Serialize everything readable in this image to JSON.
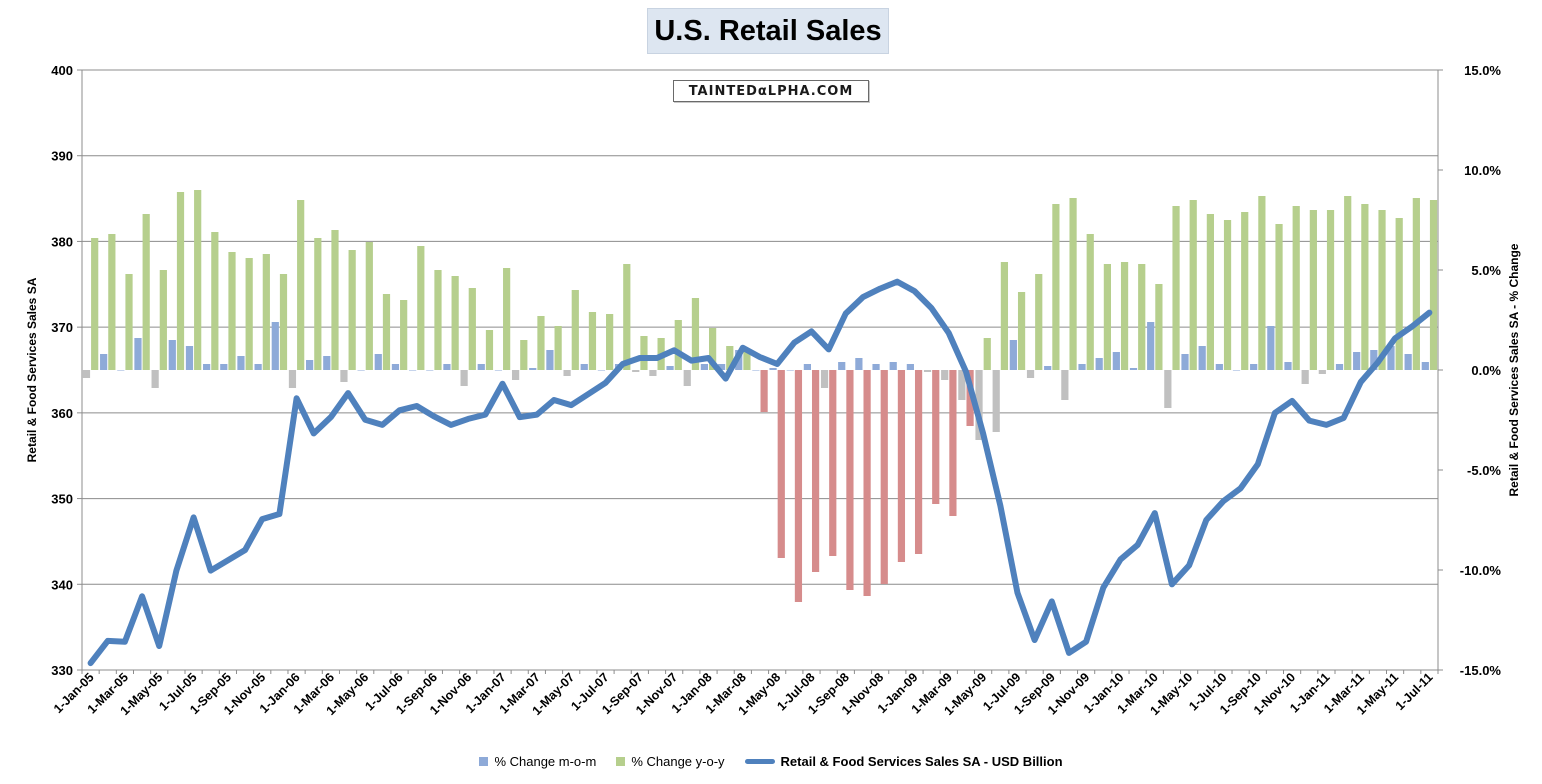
{
  "chart_data": {
    "type": "bar+line",
    "title": "U.S. Retail Sales",
    "watermark": "TAINTEDαLPHA.COM",
    "start_month": "2005-01",
    "months": 79,
    "y_left": {
      "label": "Retail & Food Services Sales SA",
      "range": [
        330,
        400
      ],
      "ticks": [
        "330",
        "340",
        "350",
        "360",
        "370",
        "380",
        "390",
        "400"
      ]
    },
    "y_right": {
      "label": "Retail & Food Services Sales SA - % Change",
      "range": [
        -15,
        15
      ],
      "ticks": [
        "-15.0%",
        "-10.0%",
        "-5.0%",
        "0.0%",
        "5.0%",
        "10.0%",
        "15.0%"
      ]
    },
    "x_tick_labels": [
      "1-Jan-05",
      "1-Mar-05",
      "1-May-05",
      "1-Jul-05",
      "1-Sep-05",
      "1-Nov-05",
      "1-Jan-06",
      "1-Mar-06",
      "1-May-06",
      "1-Jul-06",
      "1-Sep-06",
      "1-Nov-06",
      "1-Jan-07",
      "1-Mar-07",
      "1-May-07",
      "1-Jul-07",
      "1-Sep-07",
      "1-Nov-07",
      "1-Jan-08",
      "1-Mar-08",
      "1-May-08",
      "1-Jul-08",
      "1-Sep-08",
      "1-Nov-08",
      "1-Jan-09",
      "1-Mar-09",
      "1-May-09",
      "1-Jul-09",
      "1-Sep-09",
      "1-Nov-09",
      "1-Jan-10",
      "1-Mar-10",
      "1-May-10",
      "1-Jul-10",
      "1-Sep-10",
      "1-Nov-10",
      "1-Jan-11",
      "1-Mar-11",
      "1-May-11",
      "1-Jul-11"
    ],
    "series": [
      {
        "name": "% Change m-o-m",
        "type": "bar",
        "axis": "right",
        "color": "#8eaad8",
        "negative_color": "#c0c0c0",
        "values": [
          -0.4,
          0.8,
          0.0,
          1.6,
          -0.9,
          1.5,
          1.2,
          0.3,
          0.3,
          0.7,
          0.3,
          2.4,
          -0.9,
          0.5,
          0.7,
          -0.6,
          0.0,
          0.8,
          0.3,
          0.0,
          0.0,
          0.3,
          -0.8,
          0.3,
          0.0,
          -0.5,
          0.1,
          1.0,
          -0.3,
          0.3,
          0.0,
          0.3,
          -0.1,
          -0.3,
          0.2,
          -0.8,
          0.3,
          0.3,
          1.0,
          0.0,
          0.1,
          0.0,
          0.3,
          -0.9,
          0.4,
          0.6,
          0.3,
          0.4,
          0.3,
          -0.1,
          -0.5,
          -1.5,
          -3.5,
          -3.1,
          1.5,
          -0.4,
          0.2,
          -1.5,
          0.3,
          0.6,
          0.9,
          0.1,
          2.4,
          -1.9,
          0.8,
          1.2,
          0.3,
          0.0,
          0.3,
          2.2,
          0.4,
          -0.7,
          -0.2,
          0.3,
          0.9,
          1.0,
          1.2,
          0.8,
          0.4
        ]
      },
      {
        "name": "% Change y-o-y",
        "type": "bar",
        "axis": "right",
        "color": "#b6cf8d",
        "negative_color": "#d68c8c",
        "values": [
          6.6,
          6.8,
          4.8,
          7.8,
          5.0,
          8.9,
          9.0,
          6.9,
          5.9,
          5.6,
          5.8,
          4.8,
          8.5,
          6.6,
          7.0,
          6.0,
          6.4,
          3.8,
          3.5,
          6.2,
          5.0,
          4.7,
          4.1,
          2.0,
          5.1,
          1.5,
          2.7,
          2.2,
          4.0,
          2.9,
          2.8,
          5.3,
          1.7,
          1.6,
          2.5,
          3.6,
          2.1,
          1.2,
          1.0,
          -2.1,
          -9.4,
          -11.6,
          -10.1,
          -9.3,
          -11.0,
          -11.3,
          -10.7,
          -9.6,
          -9.2,
          -6.7,
          -7.3,
          -2.8,
          1.6,
          5.4,
          3.9,
          4.8,
          8.3,
          8.6,
          6.8,
          5.3,
          5.4,
          5.3,
          4.3,
          8.2,
          8.5,
          7.8,
          7.5,
          7.9,
          8.7,
          7.3,
          8.2,
          8.0,
          8.0,
          8.7,
          8.3,
          8.0,
          7.6,
          8.6,
          8.5
        ]
      },
      {
        "name": "Retail & Food Services Sales SA - USD Billion",
        "type": "line",
        "axis": "left",
        "color": "#4f81bd",
        "values": [
          330.8,
          333.4,
          333.3,
          338.6,
          332.8,
          341.6,
          347.8,
          341.6,
          342.8,
          344.0,
          347.6,
          348.2,
          361.7,
          357.6,
          359.5,
          362.3,
          359.2,
          358.6,
          360.3,
          360.8,
          359.6,
          358.6,
          359.3,
          359.8,
          363.4,
          359.5,
          359.8,
          361.5,
          360.9,
          362.2,
          363.5,
          365.7,
          366.4,
          366.4,
          367.3,
          366.1,
          366.4,
          364.0,
          367.6,
          366.5,
          365.7,
          368.2,
          369.5,
          367.4,
          371.6,
          373.5,
          374.5,
          375.3,
          374.2,
          372.2,
          369.3,
          364.8,
          357.6,
          349.2,
          339.0,
          333.5,
          338.0,
          332.0,
          333.3,
          339.6,
          342.9,
          344.6,
          348.3,
          340.0,
          342.2,
          347.5,
          349.7,
          351.2,
          354.0,
          360.0,
          361.4,
          359.1,
          358.6,
          359.4,
          363.6,
          365.9,
          368.7,
          370.1,
          371.7
        ]
      }
    ]
  },
  "legend": {
    "mom": "% Change m-o-m",
    "yoy": "% Change y-o-y",
    "level": "Retail & Food Services Sales SA - USD Billion"
  }
}
